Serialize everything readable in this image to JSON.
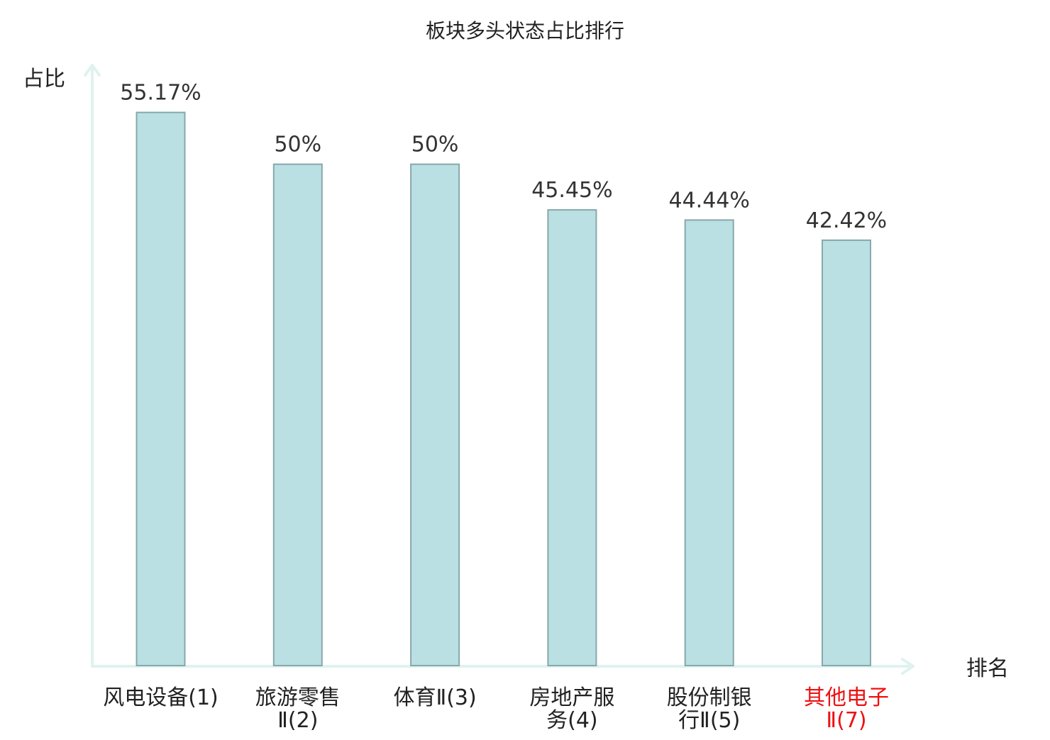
{
  "chart_data": {
    "type": "bar",
    "title": "板块多头状态占比排行",
    "ylabel": "占比",
    "xlabel": "排名",
    "ylim": [
      0,
      60
    ],
    "grid": false,
    "categories": [
      [
        "风电设备(1)"
      ],
      [
        "旅游零售",
        "Ⅱ(2)"
      ],
      [
        "体育Ⅱ(3)"
      ],
      [
        "房地产服",
        "务(4)"
      ],
      [
        "股份制银",
        "行Ⅱ(5)"
      ],
      [
        "其他电子",
        "Ⅱ(7)"
      ]
    ],
    "values": [
      55.17,
      50,
      50,
      45.45,
      44.44,
      42.42
    ],
    "value_labels": [
      "55.17%",
      "50%",
      "50%",
      "45.45%",
      "44.44%",
      "42.42%"
    ],
    "category_colors": [
      "#222222",
      "#222222",
      "#222222",
      "#222222",
      "#222222",
      "#ee1111"
    ],
    "bar_color": "#bbe0e3",
    "bar_border_color": "#86a8ab",
    "axis_color": "#dff2ef"
  }
}
